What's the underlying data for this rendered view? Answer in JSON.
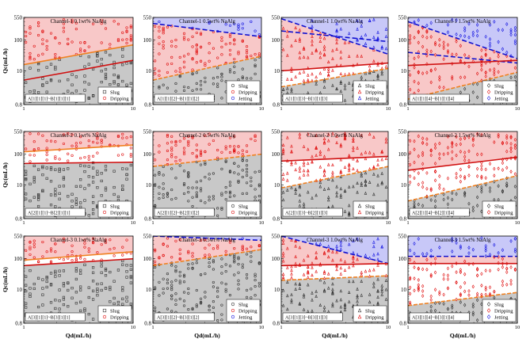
{
  "figure": {
    "y_axis_label": "Qc(mL/h)",
    "x_axis_label": "Qd(mL/h)",
    "y_ticks": [
      0.8,
      10,
      100,
      550
    ],
    "y_tick_labels": [
      "0.8",
      "10",
      "100",
      "550"
    ],
    "x_ticks": [
      1,
      10
    ],
    "x_tick_labels": [
      "1",
      "10"
    ]
  },
  "colors": {
    "slug_fill": "#c8c8c8",
    "dripping_fill": "#f8c8c8",
    "jetting_fill": "#c8c8f8",
    "slug_marker": "#333333",
    "dripping_marker": "#e01010",
    "jetting_marker": "#1818e0",
    "orange_line": "#f08020",
    "red_line": "#d01010",
    "blue_line": "#1010d0"
  },
  "chart_data": [
    {
      "id": "r1c1",
      "type": "scatter",
      "title": "Channel-1   0.1wt% NaAlg",
      "box_label": "A[1][1][1]~B[1][1][1]",
      "xlim": [
        1,
        10
      ],
      "ylim": [
        0.8,
        550
      ],
      "regions": [
        {
          "regime": "Slug",
          "from": "bottom",
          "to_line": 0
        },
        {
          "regime": "Dripping",
          "from_line": 0,
          "to": "top"
        }
      ],
      "lines": [
        {
          "color": "orange",
          "y_at_x1": 16,
          "y_at_x10": 70
        },
        {
          "color": "red",
          "y_at_x1": 5,
          "y_at_x10": 22
        }
      ],
      "legend": [
        {
          "marker": "square",
          "label": "Slug"
        },
        {
          "marker": "circle",
          "label": "Dripping"
        }
      ]
    },
    {
      "id": "r1c2",
      "type": "scatter",
      "title": "Channel-1   0.5wt% NaAlg",
      "box_label": "A[1][1][2]~B[1][1][2]",
      "xlim": [
        1,
        10
      ],
      "ylim": [
        0.8,
        550
      ],
      "regions": [
        {
          "regime": "Slug",
          "from": "bottom",
          "to_line": 1
        },
        {
          "regime": "Dripping",
          "from_line": 1,
          "to_line": 0
        },
        {
          "regime": "Jetting",
          "from_line": 0,
          "to": "top"
        }
      ],
      "lines": [
        {
          "color": "blue",
          "y_at_x1": 350,
          "y_at_x10": 130
        },
        {
          "color": "orange",
          "y_at_x1": 5,
          "y_at_x10": 30
        }
      ],
      "legend": [
        {
          "marker": "circle",
          "label": "Slug"
        },
        {
          "marker": "circle",
          "label": "Dripping"
        },
        {
          "marker": "circle",
          "label": "Jetting"
        }
      ]
    },
    {
      "id": "r1c3",
      "type": "scatter",
      "title": "Channel-1   1.0wt% NaAlg",
      "box_label": "A[1][1][3]~B[1][1][3]",
      "xlim": [
        1,
        10
      ],
      "ylim": [
        0.8,
        550
      ],
      "regions": [
        {
          "regime": "Slug",
          "from": "bottom",
          "to_line": 3
        },
        {
          "regime": "Dripping",
          "from_line": 2,
          "to_line": 0
        },
        {
          "regime": "Jetting",
          "from_line": 0,
          "to": "top"
        }
      ],
      "lines": [
        {
          "color": "blue",
          "y_at_x1": 500,
          "y_at_x10": 35
        },
        {
          "color": "blue",
          "y_at_x1": 200,
          "y_at_x10": 90
        },
        {
          "color": "red",
          "y_at_x1": 10,
          "y_at_x10": 18
        },
        {
          "color": "orange",
          "y_at_x1": 3,
          "y_at_x10": 12
        }
      ],
      "legend": [
        {
          "marker": "triangle",
          "label": "Slug"
        },
        {
          "marker": "triangle",
          "label": "Dripping"
        },
        {
          "marker": "triangle",
          "label": "Jetting"
        }
      ]
    },
    {
      "id": "r1c4",
      "type": "scatter",
      "title": "Channel-1   1.5wt% NaAlg",
      "box_label": "A[1][1][4]~B[1][1][4]",
      "xlim": [
        1,
        10
      ],
      "ylim": [
        0.8,
        550
      ],
      "regions": [
        {
          "regime": "Slug",
          "from": "bottom",
          "to_line": 3
        },
        {
          "regime": "Dripping",
          "from_line": 3,
          "to_line": 0
        },
        {
          "regime": "Jetting",
          "from_line": 0,
          "to": "top"
        }
      ],
      "lines": [
        {
          "color": "blue",
          "y_at_x1": 400,
          "y_at_x10": 25
        },
        {
          "color": "blue",
          "y_at_x1": 40,
          "y_at_x10": 18
        },
        {
          "color": "red",
          "y_at_x1": 15,
          "y_at_x10": 22
        },
        {
          "color": "orange",
          "y_at_x1": 1.2,
          "y_at_x10": 9
        }
      ],
      "legend": [
        {
          "marker": "diamond",
          "label": "Slug"
        },
        {
          "marker": "diamond",
          "label": "Dripping"
        },
        {
          "marker": "diamond",
          "label": "Jetting"
        }
      ]
    },
    {
      "id": "r2c1",
      "type": "scatter",
      "title": "Channel-2   0.1wt% NaAlg",
      "box_label": "A[2][1][1]~B[2][1][1]",
      "xlim": [
        1,
        10
      ],
      "ylim": [
        0.8,
        550
      ],
      "regions": [
        {
          "regime": "Slug",
          "from": "bottom",
          "to_line": 1
        },
        {
          "regime": "Dripping",
          "from_line": 0,
          "to": "top"
        }
      ],
      "lines": [
        {
          "color": "orange",
          "y_at_x1": 120,
          "y_at_x10": 200
        },
        {
          "color": "red",
          "y_at_x1": 50,
          "y_at_x10": 55
        }
      ],
      "legend": [
        {
          "marker": "square",
          "label": "Slug"
        },
        {
          "marker": "circle",
          "label": "Dripping"
        }
      ]
    },
    {
      "id": "r2c2",
      "type": "scatter",
      "title": "Channel-2   0.5wt% NaAlg",
      "box_label": "A[2][1][2]~B[2][1][2]",
      "xlim": [
        1,
        10
      ],
      "ylim": [
        0.8,
        550
      ],
      "regions": [
        {
          "regime": "Slug",
          "from": "bottom",
          "to_line": 0
        },
        {
          "regime": "Dripping",
          "from_line": 0,
          "to": "top"
        }
      ],
      "lines": [
        {
          "color": "orange",
          "y_at_x1": 40,
          "y_at_x10": 100
        }
      ],
      "legend": [
        {
          "marker": "circle",
          "label": "Slug"
        },
        {
          "marker": "circle",
          "label": "Dripping"
        }
      ]
    },
    {
      "id": "r2c3",
      "type": "scatter",
      "title": "Channel-2   1.0wt% NaAlg",
      "box_label": "A[2][1][3]~B[2][1][3]",
      "xlim": [
        1,
        10
      ],
      "ylim": [
        0.8,
        550
      ],
      "regions": [
        {
          "regime": "Slug",
          "from": "bottom",
          "to_line": 1
        },
        {
          "regime": "Dripping",
          "from_line": 0,
          "to": "top"
        }
      ],
      "lines": [
        {
          "color": "red",
          "y_at_x1": 60,
          "y_at_x10": 85
        },
        {
          "color": "orange",
          "y_at_x1": 8,
          "y_at_x10": 40
        }
      ],
      "legend": [
        {
          "marker": "triangle",
          "label": "Slug"
        },
        {
          "marker": "triangle",
          "label": "Dripping"
        }
      ]
    },
    {
      "id": "r2c4",
      "type": "scatter",
      "title": "Channel-2   1.5wt% NaAlg",
      "box_label": "A[2][1][4]~B[2][1][4]",
      "xlim": [
        1,
        10
      ],
      "ylim": [
        0.8,
        550
      ],
      "regions": [
        {
          "regime": "Slug",
          "from": "bottom",
          "to_line": 1
        },
        {
          "regime": "Dripping",
          "from_line": 0,
          "to": "top"
        }
      ],
      "lines": [
        {
          "color": "red",
          "y_at_x1": 30,
          "y_at_x10": 80
        },
        {
          "color": "orange",
          "y_at_x1": 3,
          "y_at_x10": 20
        }
      ],
      "legend": [
        {
          "marker": "diamond",
          "label": "Slug"
        },
        {
          "marker": "diamond",
          "label": "Dripping"
        }
      ]
    },
    {
      "id": "r3c1",
      "type": "scatter",
      "title": "Channel-3   0.1wt% NaAlg",
      "box_label": "A[3][1][1]~B[3][1][1]",
      "xlim": [
        1,
        10
      ],
      "ylim": [
        0.8,
        550
      ],
      "regions": [
        {
          "regime": "Slug",
          "from": "bottom",
          "to_line": 1
        },
        {
          "regime": "Dripping",
          "from_line": 0,
          "to": "top"
        }
      ],
      "lines": [
        {
          "color": "orange",
          "y_at_x1": 90,
          "y_at_x10": 170
        },
        {
          "color": "red",
          "y_at_x1": 60,
          "y_at_x10": 100
        }
      ],
      "legend": [
        {
          "marker": "square",
          "label": "Slug"
        },
        {
          "marker": "circle",
          "label": "Dripping"
        }
      ]
    },
    {
      "id": "r3c2",
      "type": "scatter",
      "title": "Channel-3   0.5wt% NaAlg",
      "box_label": "A[3][1][2]~B[3][1][2]",
      "xlim": [
        1,
        10
      ],
      "ylim": [
        0.8,
        550
      ],
      "regions": [
        {
          "regime": "Slug",
          "from": "bottom",
          "to_line": 1
        },
        {
          "regime": "Dripping",
          "from_line": 1,
          "to_line": 0
        },
        {
          "regime": "Jetting",
          "from_line": 0,
          "to": "top"
        }
      ],
      "lines": [
        {
          "color": "blue",
          "y_at_x1": 550,
          "y_at_x10": 400
        },
        {
          "color": "orange",
          "y_at_x1": 60,
          "y_at_x10": 200
        }
      ],
      "legend": [
        {
          "marker": "circle",
          "label": "Slug"
        },
        {
          "marker": "circle",
          "label": "Dripping"
        },
        {
          "marker": "circle",
          "label": "Jetting"
        }
      ]
    },
    {
      "id": "r3c3",
      "type": "scatter",
      "title": "Channel-3   1.0wt% NaAlg",
      "box_label": "A[3][1][3]~B[3][1][3]",
      "xlim": [
        1,
        10
      ],
      "ylim": [
        0.8,
        550
      ],
      "regions": [
        {
          "regime": "Slug",
          "from": "bottom",
          "to_line": 2
        },
        {
          "regime": "Dripping",
          "from_line": 1,
          "to_line": 0
        },
        {
          "regime": "Jetting",
          "from_line": 0,
          "to": "top"
        }
      ],
      "lines": [
        {
          "color": "blue",
          "y_at_x1": 550,
          "y_at_x10": 70
        },
        {
          "color": "red",
          "y_at_x1": 60,
          "y_at_x10": 70
        },
        {
          "color": "orange",
          "y_at_x1": 20,
          "y_at_x10": 28
        }
      ],
      "legend": [
        {
          "marker": "triangle",
          "label": "Slug"
        },
        {
          "marker": "triangle",
          "label": "Dripping"
        }
      ]
    },
    {
      "id": "r3c4",
      "type": "scatter",
      "title": "Channel-3   1.5wt% NaAlg",
      "box_label": "A[3][1][4]~B[3][1][4]",
      "xlim": [
        1,
        10
      ],
      "ylim": [
        0.8,
        550
      ],
      "regions": [
        {
          "regime": "Slug",
          "from": "bottom",
          "to_line": 2
        },
        {
          "regime": "Dripping",
          "from_line": 1,
          "to_line": 0
        },
        {
          "regime": "Jetting",
          "from_line": 0,
          "to": "top"
        }
      ],
      "lines": [
        {
          "color": "blue",
          "y_at_x1": 120,
          "y_at_x10": 120
        },
        {
          "color": "red",
          "y_at_x1": 70,
          "y_at_x10": 70
        },
        {
          "color": "orange",
          "y_at_x1": 3,
          "y_at_x10": 8
        }
      ],
      "legend": [
        {
          "marker": "diamond",
          "label": "Slug"
        },
        {
          "marker": "diamond",
          "label": "Dripping"
        },
        {
          "marker": "diamond",
          "label": "Jetting"
        }
      ]
    }
  ]
}
